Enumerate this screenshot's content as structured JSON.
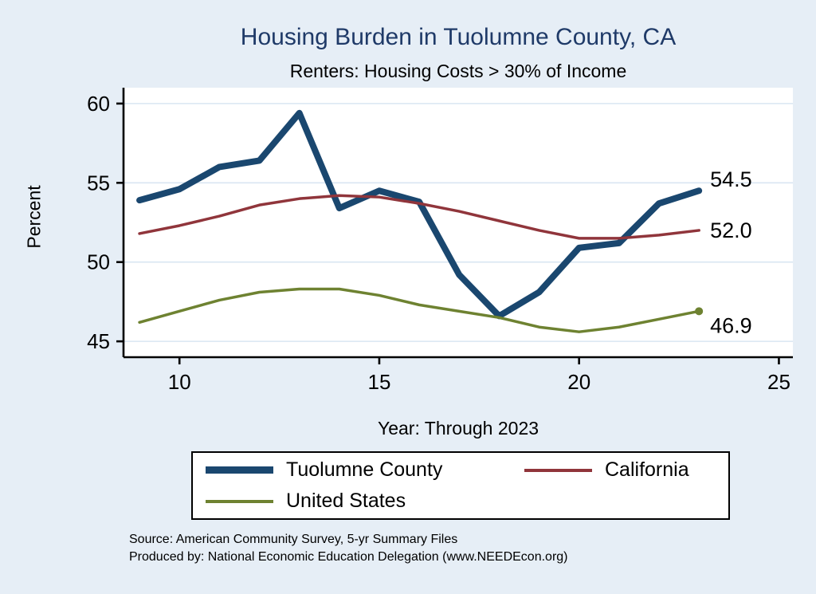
{
  "title": "Housing Burden in Tuolumne County, CA",
  "subtitle": "Renters: Housing Costs > 30% of Income",
  "source_line1": "Source: American Community Survey, 5-yr Summary Files",
  "source_line2": "Produced by: National Economic Education Delegation (www.NEEDEcon.org)",
  "colors": {
    "background": "#e6eef6",
    "plot_background": "#ffffff",
    "gridline": "#d9e6f2",
    "title": "#1f3a68",
    "tuolumne_county": "#1a476f",
    "california": "#90353b",
    "united_states": "#6e8231"
  },
  "chart_data": {
    "type": "line",
    "title": "Housing Burden in Tuolumne County, CA",
    "subtitle": "Renters: Housing Costs > 30% of Income",
    "xlabel": "Year: Through 2023",
    "ylabel": "Percent",
    "x": [
      9,
      10,
      11,
      12,
      13,
      14,
      15,
      16,
      17,
      18,
      19,
      20,
      21,
      22,
      23
    ],
    "series": [
      {
        "name": "Tuolumne County",
        "color": "#1a476f",
        "end_label": "54.5",
        "values": [
          53.9,
          54.6,
          56.0,
          56.4,
          59.4,
          53.4,
          54.5,
          53.8,
          49.2,
          46.6,
          48.1,
          50.9,
          51.2,
          53.7,
          54.5
        ]
      },
      {
        "name": "California",
        "color": "#90353b",
        "end_label": "52.0",
        "values": [
          51.8,
          52.3,
          52.9,
          53.6,
          54.0,
          54.2,
          54.1,
          53.7,
          53.2,
          52.6,
          52.0,
          51.5,
          51.5,
          51.7,
          52.0
        ]
      },
      {
        "name": "United States",
        "color": "#6e8231",
        "end_label": "46.9",
        "values": [
          46.2,
          46.9,
          47.6,
          48.1,
          48.3,
          48.3,
          47.9,
          47.3,
          46.9,
          46.5,
          45.9,
          45.6,
          45.9,
          46.4,
          46.9
        ]
      }
    ],
    "xticks": [
      10,
      15,
      20,
      25
    ],
    "yticks": [
      45,
      50,
      55,
      60
    ],
    "xlim": [
      8.6,
      25.35
    ],
    "ylim": [
      44,
      61
    ],
    "grid": "horizontal",
    "legend_position": "bottom"
  }
}
